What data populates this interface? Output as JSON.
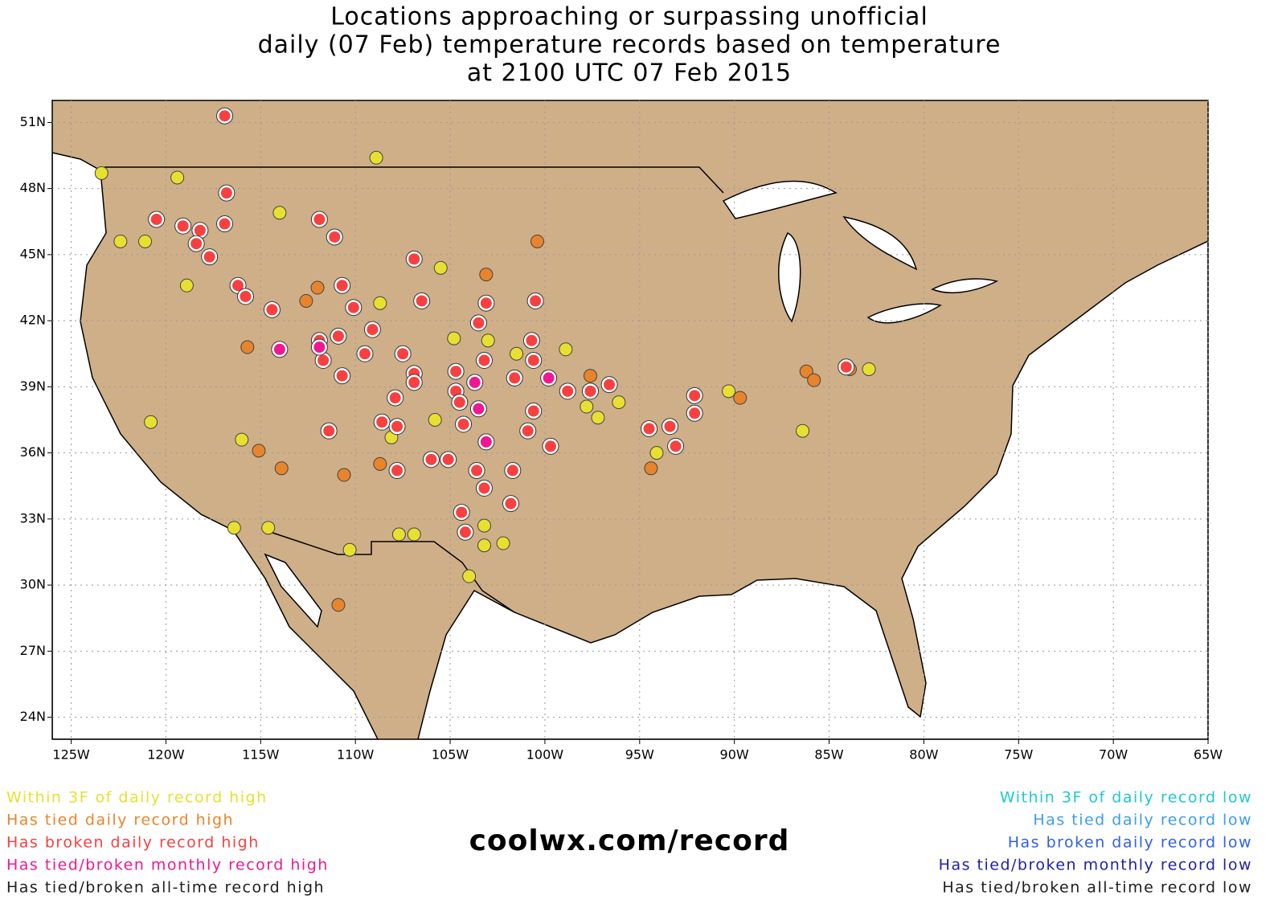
{
  "chart_data": {
    "type": "scatter",
    "title": [
      "Locations approaching or surpassing unofficial",
      "daily (07 Feb) temperature records based on temperature",
      "at 2100 UTC 07 Feb 2015"
    ],
    "source": "coolwx.com/record",
    "xlim": [
      -126,
      -65
    ],
    "ylim": [
      23,
      52
    ],
    "xticks": [
      {
        "value": -125,
        "label": "125W"
      },
      {
        "value": -120,
        "label": "120W"
      },
      {
        "value": -115,
        "label": "115W"
      },
      {
        "value": -110,
        "label": "110W"
      },
      {
        "value": -105,
        "label": "105W"
      },
      {
        "value": -100,
        "label": "100W"
      },
      {
        "value": -95,
        "label": "95W"
      },
      {
        "value": -90,
        "label": "90W"
      },
      {
        "value": -85,
        "label": "85W"
      },
      {
        "value": -80,
        "label": "80W"
      },
      {
        "value": -75,
        "label": "75W"
      },
      {
        "value": -70,
        "label": "70W"
      },
      {
        "value": -65,
        "label": "65W"
      }
    ],
    "yticks": [
      {
        "value": 24,
        "label": "24N"
      },
      {
        "value": 27,
        "label": "27N"
      },
      {
        "value": 30,
        "label": "30N"
      },
      {
        "value": 33,
        "label": "33N"
      },
      {
        "value": 36,
        "label": "36N"
      },
      {
        "value": 39,
        "label": "39N"
      },
      {
        "value": 42,
        "label": "42N"
      },
      {
        "value": 45,
        "label": "45N"
      },
      {
        "value": 48,
        "label": "48N"
      },
      {
        "value": 51,
        "label": "51N"
      }
    ],
    "grid": true,
    "series": [
      {
        "name": "Within 3F of daily record high",
        "color": "#e8e030",
        "x": [
          -123.4,
          -119.4,
          -108.9,
          -114.0,
          -122.4,
          -121.1,
          -118.9,
          -105.5,
          -108.7,
          -104.8,
          -103.0,
          -101.5,
          -98.9,
          -120.8,
          -116.0,
          -108.1,
          -105.8,
          -97.8,
          -97.2,
          -96.1,
          -94.1,
          -90.3,
          -116.4,
          -114.6,
          -110.3,
          -107.7,
          -106.9,
          -103.2,
          -103.2,
          -102.2,
          -104.0,
          -86.4,
          -82.9
        ],
        "y": [
          48.7,
          48.5,
          49.4,
          46.9,
          45.6,
          45.6,
          43.6,
          44.4,
          42.8,
          41.2,
          41.1,
          40.5,
          40.7,
          37.4,
          36.6,
          36.7,
          37.5,
          38.1,
          37.6,
          38.3,
          36.0,
          38.8,
          32.6,
          32.6,
          31.6,
          32.3,
          32.3,
          32.7,
          31.8,
          31.9,
          30.4,
          37.0,
          39.8
        ]
      },
      {
        "name": "Has tied daily record high",
        "color": "#e8842c",
        "x": [
          -100.4,
          -103.1,
          -112.0,
          -112.6,
          -115.7,
          -97.6,
          -115.1,
          -113.9,
          -110.6,
          -108.7,
          -94.4,
          -89.7,
          -86.2,
          -85.8,
          -83.9,
          -110.9
        ],
        "y": [
          45.6,
          44.1,
          43.5,
          42.9,
          40.8,
          39.5,
          36.1,
          35.3,
          35.0,
          35.5,
          35.3,
          38.5,
          39.7,
          39.3,
          39.8,
          29.1
        ]
      },
      {
        "name": "Has broken daily record high",
        "color": "#f84040",
        "x": [
          -116.9,
          -116.8,
          -120.5,
          -119.1,
          -118.2,
          -118.4,
          -117.7,
          -116.9,
          -111.9,
          -111.1,
          -116.2,
          -115.8,
          -114.4,
          -110.7,
          -110.1,
          -106.9,
          -106.5,
          -103.1,
          -100.5,
          -103.5,
          -109.1,
          -111.9,
          -110.9,
          -111.7,
          -109.5,
          -110.7,
          -107.5,
          -106.9,
          -106.9,
          -104.7,
          -104.7,
          -104.5,
          -107.9,
          -108.6,
          -107.8,
          -111.4,
          -104.3,
          -103.2,
          -100.7,
          -100.6,
          -101.6,
          -100.6,
          -100.9,
          -98.8,
          -97.6,
          -96.6,
          -99.7,
          -106.0,
          -105.1,
          -103.6,
          -103.2,
          -101.7,
          -101.8,
          -104.4,
          -104.2,
          -107.8,
          -94.5,
          -93.4,
          -93.1,
          -92.1,
          -92.1,
          -84.1
        ],
        "y": [
          51.3,
          47.8,
          46.6,
          46.3,
          46.1,
          45.5,
          44.9,
          46.4,
          46.6,
          45.8,
          43.6,
          43.1,
          42.5,
          43.6,
          42.6,
          44.8,
          42.9,
          42.8,
          42.9,
          41.9,
          41.6,
          41.1,
          41.3,
          40.2,
          40.5,
          39.5,
          40.5,
          39.6,
          39.2,
          39.7,
          38.8,
          38.3,
          38.5,
          37.4,
          37.2,
          37.0,
          37.3,
          40.2,
          41.1,
          40.2,
          39.4,
          37.9,
          37.0,
          38.8,
          38.8,
          39.1,
          36.3,
          35.7,
          35.7,
          35.2,
          34.4,
          35.2,
          33.7,
          33.3,
          32.4,
          35.2,
          37.1,
          37.2,
          36.3,
          38.6,
          37.8,
          39.9
        ]
      },
      {
        "name": "Has tied/broken monthly record high",
        "color": "#f01890",
        "x": [
          -114.0,
          -111.9,
          -103.7,
          -103.5,
          -103.1,
          -99.8
        ],
        "y": [
          40.7,
          40.8,
          39.2,
          38.0,
          36.5,
          39.4
        ]
      },
      {
        "name": "Has tied/broken all-time record high",
        "color": "#202020",
        "x": [],
        "y": []
      },
      {
        "name": "Within 3F of daily record low",
        "color": "#20c8d0",
        "x": [],
        "y": []
      },
      {
        "name": "Has tied daily record low",
        "color": "#3c9cf0",
        "x": [],
        "y": []
      },
      {
        "name": "Has broken daily record low",
        "color": "#3060e8",
        "x": [],
        "y": []
      },
      {
        "name": "Has tied/broken monthly record low",
        "color": "#2020b0",
        "x": [],
        "y": []
      },
      {
        "name": "Has tied/broken all-time record low",
        "color": "#202020",
        "x": [],
        "y": []
      }
    ]
  }
}
